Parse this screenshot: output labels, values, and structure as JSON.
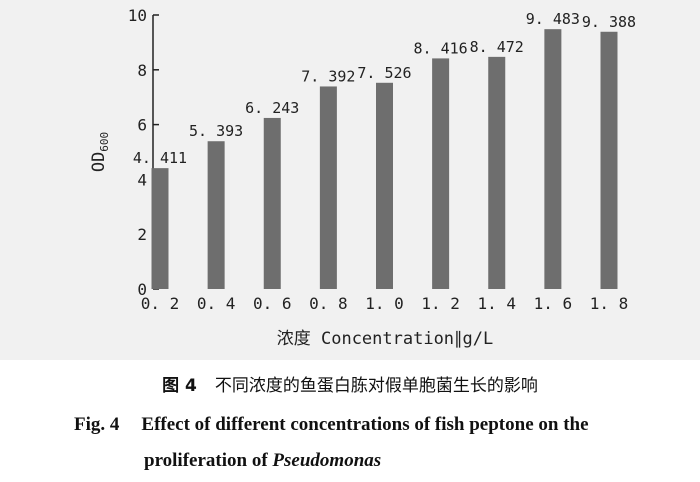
{
  "chart_data": {
    "type": "bar",
    "categories": [
      "0. 2",
      "0. 4",
      "0. 6",
      "0. 8",
      "1. 0",
      "1. 2",
      "1. 4",
      "1. 6",
      "1. 8"
    ],
    "values": [
      4.411,
      5.393,
      6.243,
      7.392,
      7.526,
      8.416,
      8.472,
      9.483,
      9.388
    ],
    "data_labels": [
      "4. 411",
      "5. 393",
      "6. 243",
      "7. 392",
      "7. 526",
      "8. 416",
      "8. 472",
      "9. 483",
      "9. 388"
    ],
    "xlabel": "浓度 Concentration∥g/L",
    "ylabel_main": "OD",
    "ylabel_sub": "600",
    "yticks": [
      0,
      2,
      4,
      6,
      8,
      10
    ],
    "ylim": [
      0,
      10
    ],
    "grid": false,
    "bar_color": "#6e6e6e"
  },
  "caption": {
    "cn_fig": "图 4",
    "cn_text": "不同浓度的鱼蛋白胨对假单胞菌生长的影响",
    "en_fig": "Fig. 4",
    "en_line1": "Effect of different concentrations of fish peptone on the",
    "en_line2_prefix": "proliferation of ",
    "en_line2_italic": "Pseudomonas"
  }
}
